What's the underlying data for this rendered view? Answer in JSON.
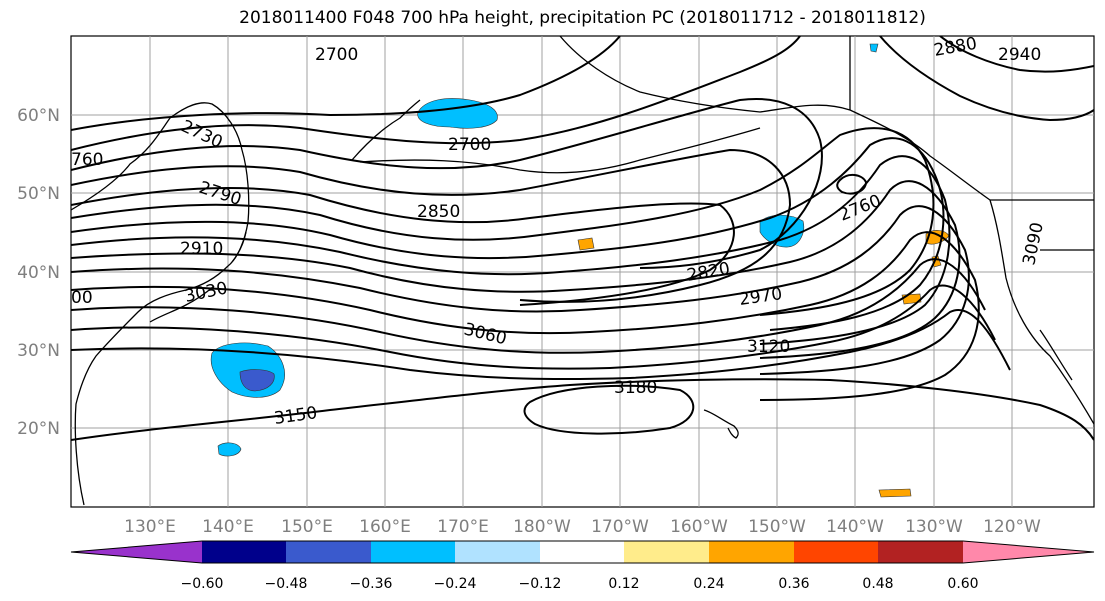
{
  "title": "2018011400 F048 700 hPa height, precipitation PC (2018011712 - 2018011812)",
  "lat_labels": [
    "60°N",
    "50°N",
    "40°N",
    "30°N",
    "20°N"
  ],
  "lon_labels": [
    "130°E",
    "140°E",
    "150°E",
    "160°E",
    "170°E",
    "180°W",
    "170°W",
    "160°W",
    "150°W",
    "140°W",
    "130°W",
    "120°W"
  ],
  "contour_labels": [
    "2700",
    "2700",
    "2730",
    "760",
    "2790",
    "2850",
    "2910",
    "3030",
    "00",
    "3060",
    "2820",
    "2970",
    "3120",
    "3180",
    "3150",
    "2760",
    "2880",
    "2940",
    "3090"
  ],
  "colorbar": {
    "ticks": [
      "−0.60",
      "−0.48",
      "−0.36",
      "−0.24",
      "−0.12",
      "0.12",
      "0.24",
      "0.36",
      "0.48",
      "0.60"
    ],
    "colors": [
      "#9932CC",
      "#00008B",
      "#3A5ACD",
      "#00BFFF",
      "#B0E2FF",
      "#FFFFFF",
      "#FFEC8B",
      "#FFA500",
      "#FF4500",
      "#B22222",
      "#FF88AA"
    ]
  }
}
